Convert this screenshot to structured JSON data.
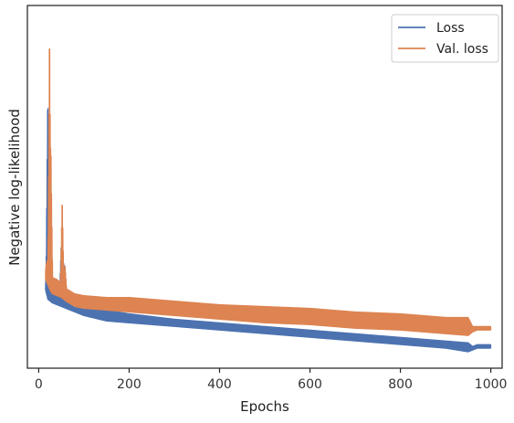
{
  "chart_data": {
    "type": "line",
    "title": "",
    "xlabel": "Epochs",
    "ylabel": "Negative log-likelihood",
    "xlim": [
      -25,
      1025
    ],
    "ylim": [
      0,
      1
    ],
    "y_tick_labels_shown": false,
    "x_ticks": [
      0,
      200,
      400,
      600,
      800,
      1000
    ],
    "x_tick_labels": [
      "0",
      "200",
      "400",
      "600",
      "800",
      "1000"
    ],
    "grid": false,
    "legend_position": "top-right",
    "series": [
      {
        "name": "Loss",
        "color": "#4c72b0",
        "envelope_x": [
          15,
          20,
          25,
          30,
          40,
          50,
          60,
          80,
          100,
          150,
          200,
          300,
          400,
          500,
          600,
          700,
          800,
          900,
          950,
          960,
          970,
          1000
        ],
        "envelope_low": [
          0.215,
          0.19,
          0.185,
          0.18,
          0.175,
          0.17,
          0.165,
          0.155,
          0.145,
          0.13,
          0.125,
          0.115,
          0.105,
          0.095,
          0.085,
          0.075,
          0.065,
          0.055,
          0.045,
          0.05,
          0.055,
          0.055
        ],
        "envelope_high": [
          0.245,
          0.23,
          0.225,
          0.22,
          0.21,
          0.205,
          0.2,
          0.185,
          0.175,
          0.16,
          0.15,
          0.135,
          0.125,
          0.115,
          0.105,
          0.095,
          0.085,
          0.075,
          0.07,
          0.06,
          0.065,
          0.065
        ],
        "spikes": [
          {
            "x": 20,
            "y": 0.78
          },
          {
            "x": 24,
            "y": 0.75
          },
          {
            "x": 27,
            "y": 0.45
          },
          {
            "x": 50,
            "y": 0.35
          },
          {
            "x": 55,
            "y": 0.3
          }
        ]
      },
      {
        "name": "Val. loss",
        "color": "#dd8452",
        "envelope_x": [
          15,
          20,
          25,
          30,
          40,
          50,
          60,
          80,
          100,
          150,
          200,
          300,
          400,
          500,
          600,
          700,
          800,
          900,
          950,
          960,
          970,
          1000
        ],
        "envelope_low": [
          0.245,
          0.23,
          0.215,
          0.205,
          0.2,
          0.195,
          0.185,
          0.17,
          0.165,
          0.16,
          0.155,
          0.145,
          0.135,
          0.125,
          0.12,
          0.11,
          0.105,
          0.095,
          0.09,
          0.1,
          0.105,
          0.105
        ],
        "envelope_high": [
          0.265,
          0.255,
          0.25,
          0.25,
          0.245,
          0.235,
          0.22,
          0.205,
          0.2,
          0.195,
          0.195,
          0.185,
          0.175,
          0.17,
          0.165,
          0.155,
          0.15,
          0.14,
          0.14,
          0.115,
          0.115,
          0.115
        ],
        "spikes": [
          {
            "x": 18,
            "y": 0.3
          },
          {
            "x": 24,
            "y": 0.97
          },
          {
            "x": 27,
            "y": 0.62
          },
          {
            "x": 52,
            "y": 0.48
          },
          {
            "x": 58,
            "y": 0.29
          }
        ]
      }
    ]
  }
}
